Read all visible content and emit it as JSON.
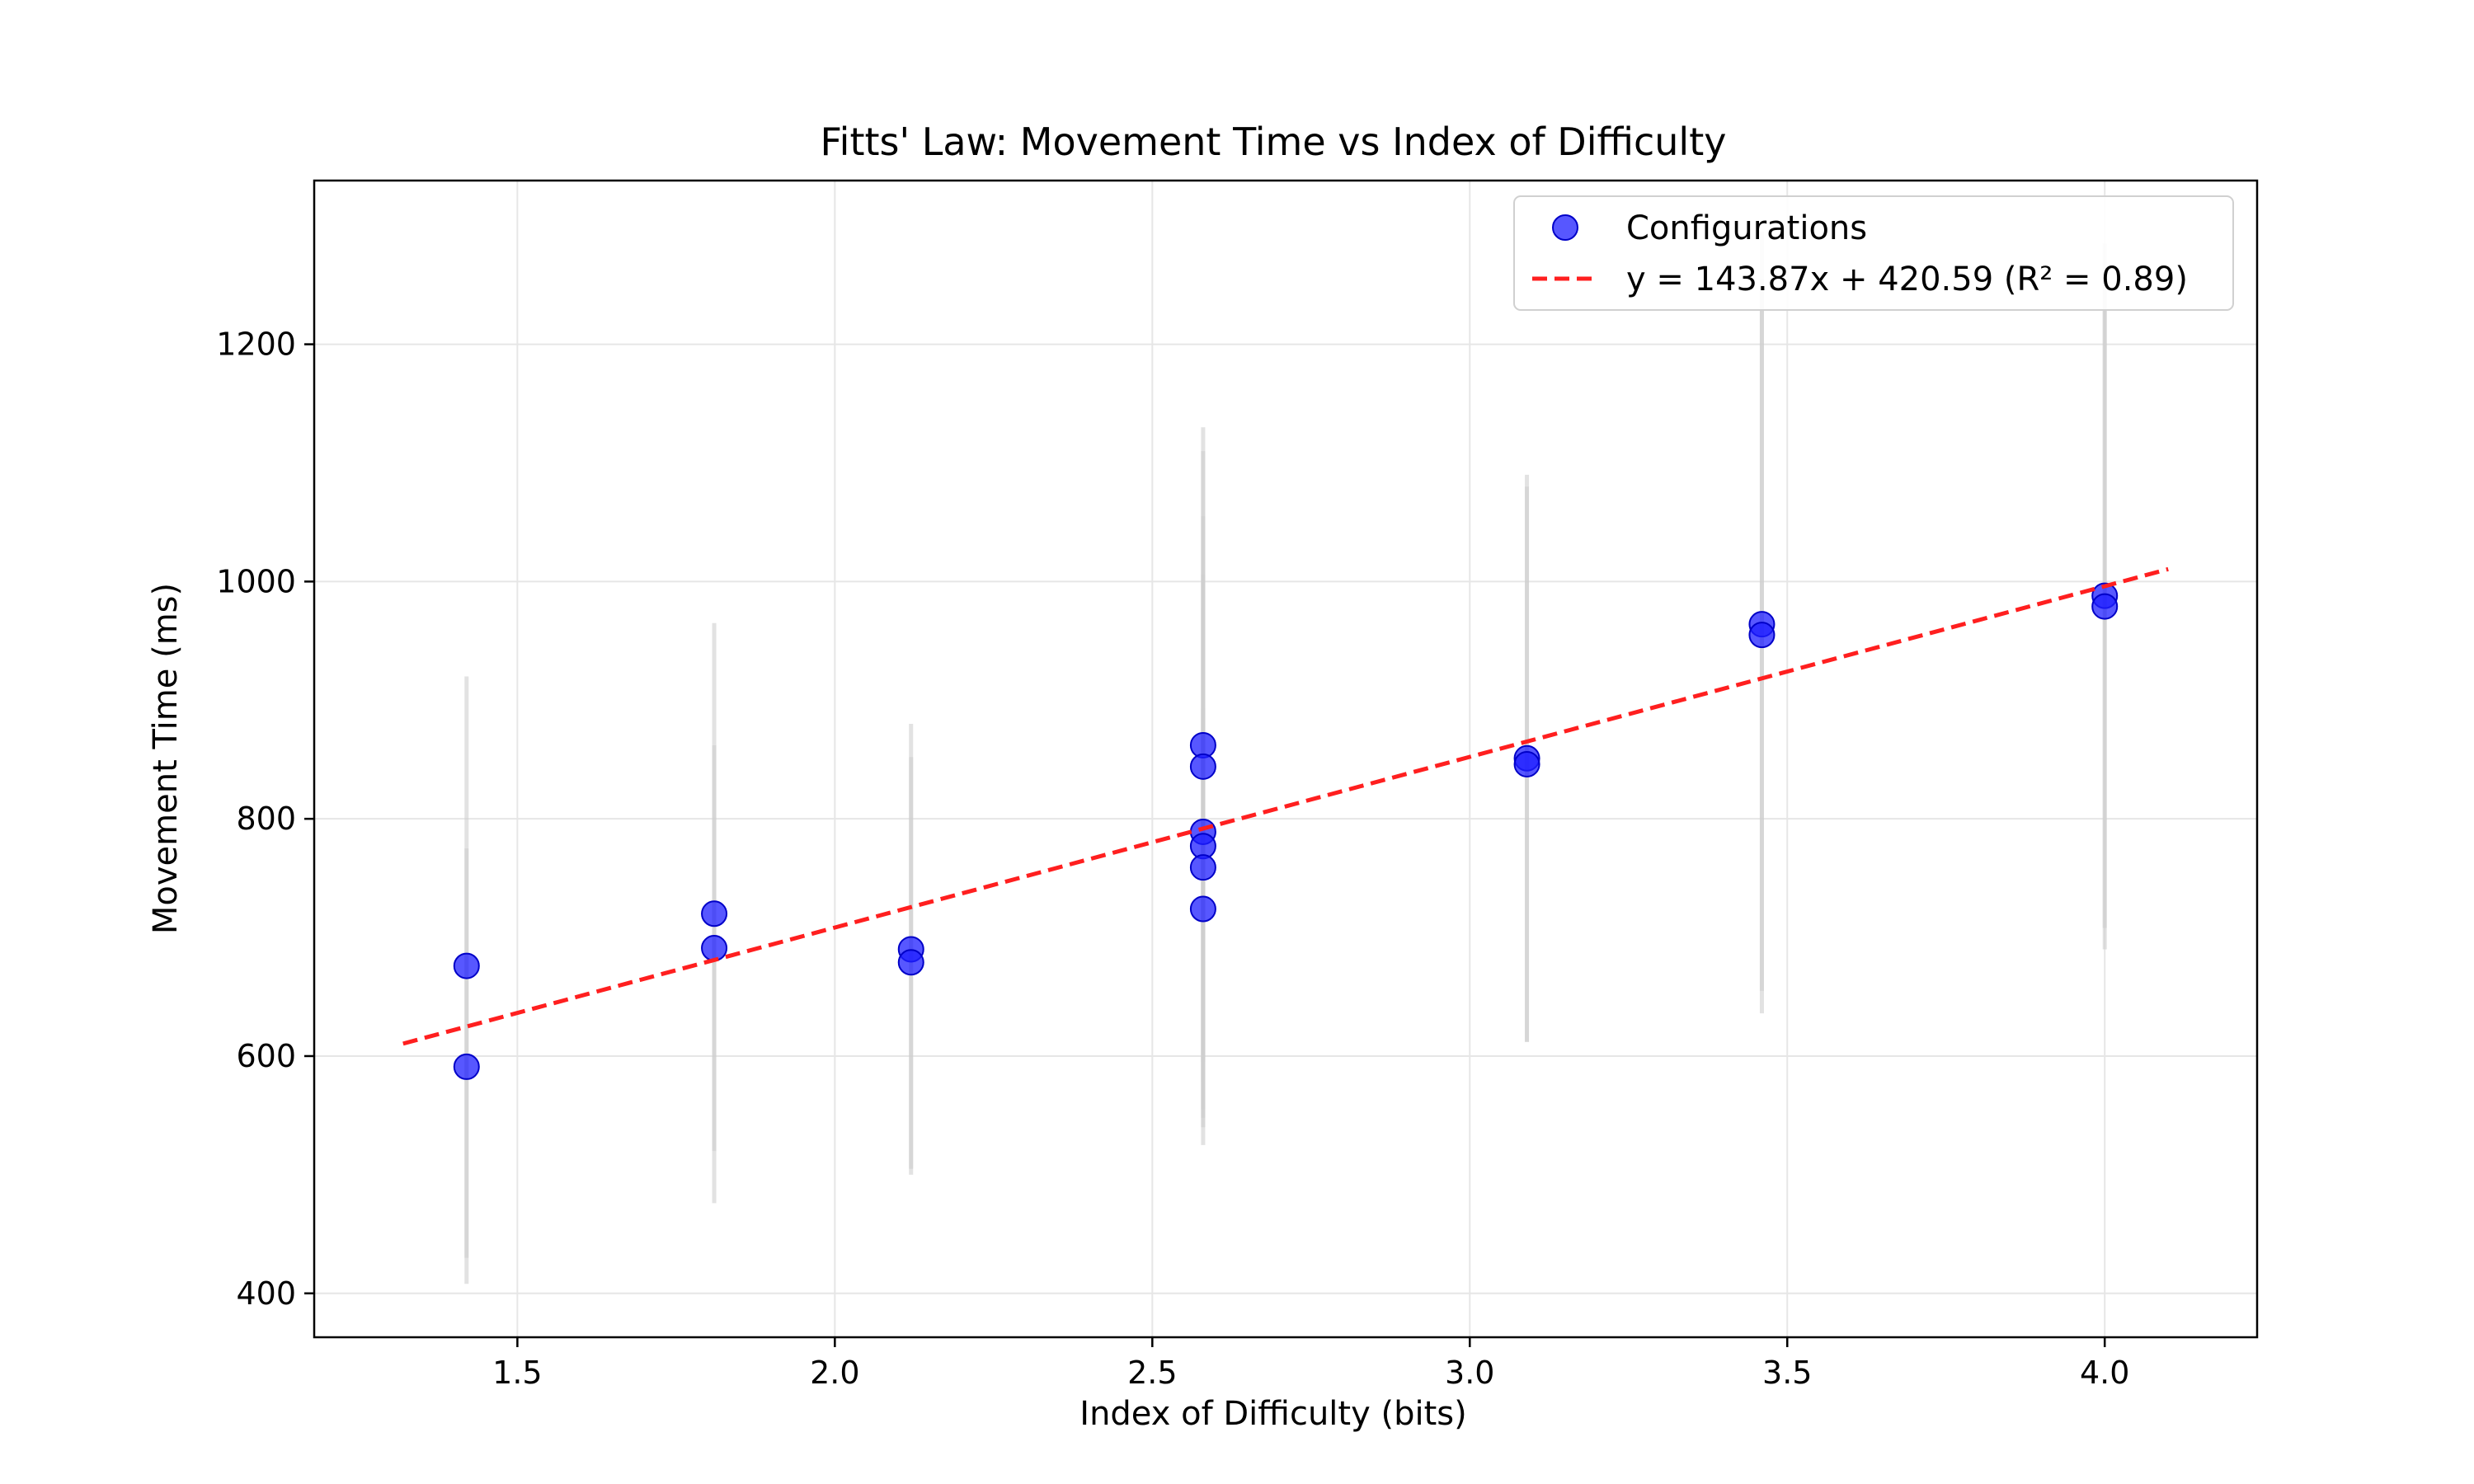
{
  "chart_data": {
    "type": "scatter",
    "title": "Fitts' Law: Movement Time vs Index of Difficulty",
    "xlabel": "Index of Difficulty (bits)",
    "ylabel": "Movement Time (ms)",
    "xlim": [
      1.18,
      4.24
    ],
    "ylim": [
      363,
      1338
    ],
    "xticks": [
      1.5,
      2.0,
      2.5,
      3.0,
      3.5,
      4.0
    ],
    "xtick_labels": [
      "1.5",
      "2.0",
      "2.5",
      "3.0",
      "3.5",
      "4.0"
    ],
    "yticks": [
      400,
      600,
      800,
      1000,
      1200
    ],
    "ytick_labels": [
      "400",
      "600",
      "800",
      "1000",
      "1200"
    ],
    "grid": true,
    "legend_position": "top-right",
    "colors": {
      "points": "#1f1fff",
      "fit_line": "#ff1f1f",
      "error_bars": "#cfcfcf"
    },
    "series": [
      {
        "name": "Configurations",
        "points": [
          {
            "x": 1.42,
            "y": 676,
            "err_low": 430,
            "err_high": 920
          },
          {
            "x": 1.42,
            "y": 591,
            "err_low": 408,
            "err_high": 775
          },
          {
            "x": 1.81,
            "y": 720,
            "err_low": 476,
            "err_high": 965
          },
          {
            "x": 1.81,
            "y": 691,
            "err_low": 520,
            "err_high": 862
          },
          {
            "x": 2.12,
            "y": 690,
            "err_low": 500,
            "err_high": 880
          },
          {
            "x": 2.12,
            "y": 679,
            "err_low": 505,
            "err_high": 852
          },
          {
            "x": 2.58,
            "y": 862,
            "err_low": 595,
            "err_high": 1130
          },
          {
            "x": 2.58,
            "y": 844,
            "err_low": 578,
            "err_high": 1110
          },
          {
            "x": 2.58,
            "y": 789,
            "err_low": 525,
            "err_high": 1055
          },
          {
            "x": 2.58,
            "y": 777,
            "err_low": 548,
            "err_high": 1006
          },
          {
            "x": 2.58,
            "y": 759,
            "err_low": 540,
            "err_high": 978
          },
          {
            "x": 2.58,
            "y": 724,
            "err_low": 555,
            "err_high": 893
          },
          {
            "x": 3.09,
            "y": 851,
            "err_low": 612,
            "err_high": 1090
          },
          {
            "x": 3.09,
            "y": 846,
            "err_low": 612,
            "err_high": 1080
          },
          {
            "x": 3.46,
            "y": 964,
            "err_low": 636,
            "err_high": 1295
          },
          {
            "x": 3.46,
            "y": 955,
            "err_low": 655,
            "err_high": 1255
          },
          {
            "x": 4.0,
            "y": 988,
            "err_low": 690,
            "err_high": 1285
          },
          {
            "x": 4.0,
            "y": 979,
            "err_low": 708,
            "err_high": 1250
          }
        ]
      },
      {
        "name": "y = 143.87x + 420.59 (R² = 0.89)",
        "type": "line",
        "style": "dashed",
        "slope": 143.87,
        "intercept": 420.59,
        "x_range": [
          1.32,
          4.1
        ]
      }
    ]
  }
}
